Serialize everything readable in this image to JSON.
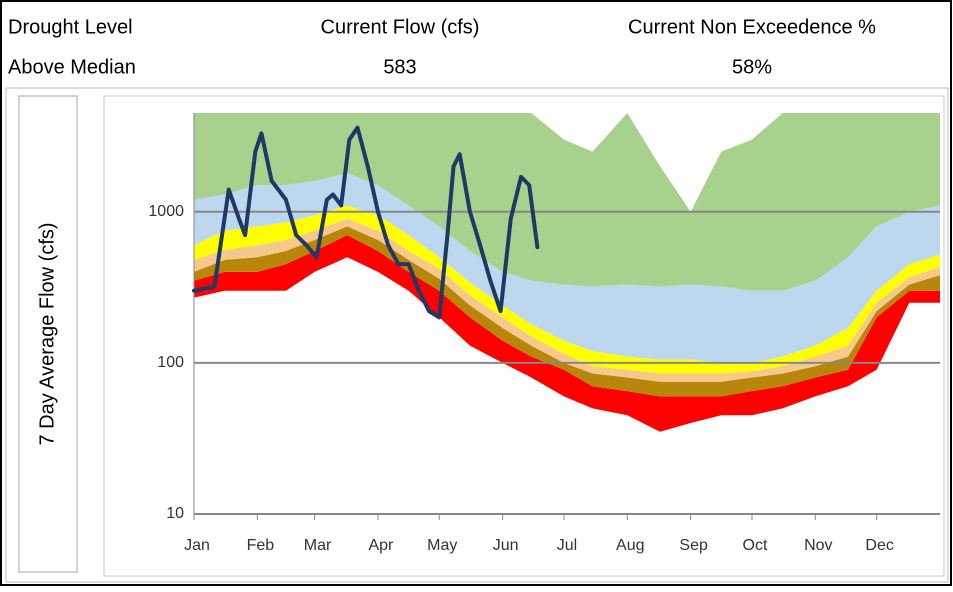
{
  "header": {
    "labels": [
      "Drought Level",
      "Current Flow (cfs)",
      "Current Non Exceedence %"
    ],
    "values": [
      "Above Median",
      "583",
      "58%"
    ]
  },
  "chart_data": {
    "type": "area",
    "ylabel": "7 Day Average Flow (cfs)",
    "log_y": true,
    "xlim": [
      0,
      365
    ],
    "ylim": [
      10,
      4500
    ],
    "yticks": [
      10,
      100,
      1000
    ],
    "grid": true,
    "xticks": [
      {
        "value": 0,
        "label": "Jan"
      },
      {
        "value": 31,
        "label": "Feb"
      },
      {
        "value": 59,
        "label": "Mar"
      },
      {
        "value": 90,
        "label": "Apr"
      },
      {
        "value": 120,
        "label": "May"
      },
      {
        "value": 151,
        "label": "Jun"
      },
      {
        "value": 181,
        "label": "Jul"
      },
      {
        "value": 212,
        "label": "Aug"
      },
      {
        "value": 243,
        "label": "Sep"
      },
      {
        "value": 273,
        "label": "Oct"
      },
      {
        "value": 304,
        "label": "Nov"
      },
      {
        "value": 334,
        "label": "Dec"
      }
    ],
    "x": [
      0,
      15,
      31,
      45,
      59,
      75,
      90,
      105,
      120,
      135,
      151,
      165,
      181,
      195,
      212,
      228,
      243,
      258,
      273,
      288,
      304,
      320,
      334,
      350,
      365
    ],
    "series": [
      {
        "values": [
          270,
          300,
          300,
          300,
          400,
          500,
          400,
          300,
          200,
          130,
          100,
          80,
          60,
          50,
          45,
          35,
          40,
          45,
          45,
          50,
          60,
          70,
          90,
          250,
          250
        ]
      },
      {
        "color": "#ff0000",
        "values": [
          350,
          400,
          400,
          450,
          550,
          700,
          550,
          400,
          300,
          200,
          140,
          110,
          90,
          70,
          65,
          60,
          60,
          60,
          65,
          70,
          80,
          90,
          200,
          300,
          300
        ]
      },
      {
        "color": "#b8860b",
        "values": [
          400,
          480,
          500,
          550,
          650,
          800,
          650,
          480,
          360,
          240,
          170,
          130,
          100,
          85,
          80,
          75,
          75,
          75,
          80,
          85,
          95,
          110,
          220,
          330,
          380
        ]
      },
      {
        "color": "#f5c98a",
        "values": [
          480,
          560,
          600,
          650,
          750,
          900,
          750,
          550,
          420,
          280,
          200,
          150,
          115,
          95,
          90,
          85,
          85,
          85,
          88,
          95,
          110,
          130,
          250,
          370,
          430
        ]
      },
      {
        "color": "#ffff00",
        "values": [
          600,
          750,
          800,
          850,
          950,
          1100,
          950,
          700,
          500,
          340,
          240,
          180,
          140,
          120,
          110,
          105,
          105,
          100,
          100,
          110,
          130,
          170,
          300,
          450,
          520
        ]
      },
      {
        "color": "#bdd7ee",
        "values": [
          1200,
          1300,
          1500,
          1500,
          1600,
          1800,
          1500,
          1100,
          800,
          550,
          400,
          350,
          330,
          320,
          330,
          320,
          330,
          320,
          300,
          300,
          350,
          500,
          800,
          1000,
          1100
        ]
      },
      {
        "color": "#a9d18e",
        "values": [
          4500,
          4500,
          4500,
          4500,
          4500,
          4500,
          4500,
          4500,
          4500,
          4500,
          4500,
          4500,
          3000,
          2500,
          4500,
          2000,
          1000,
          2500,
          3000,
          4500,
          4500,
          4500,
          4500,
          4500,
          4500
        ]
      }
    ],
    "observed": {
      "color": "#203864",
      "x": [
        0,
        5,
        10,
        17,
        22,
        25,
        30,
        33,
        38,
        45,
        50,
        55,
        60,
        65,
        68,
        72,
        76,
        80,
        85,
        90,
        95,
        100,
        105,
        110,
        115,
        120,
        124,
        127,
        130,
        135,
        140,
        145,
        150,
        155,
        160,
        164,
        168
      ],
      "values": [
        300,
        310,
        320,
        1400,
        900,
        700,
        2500,
        3300,
        1600,
        1200,
        700,
        600,
        500,
        1200,
        1300,
        1100,
        3000,
        3600,
        2000,
        1000,
        600,
        450,
        450,
        300,
        220,
        200,
        700,
        2000,
        2400,
        1000,
        600,
        350,
        220,
        900,
        1700,
        1500,
        583
      ]
    }
  }
}
